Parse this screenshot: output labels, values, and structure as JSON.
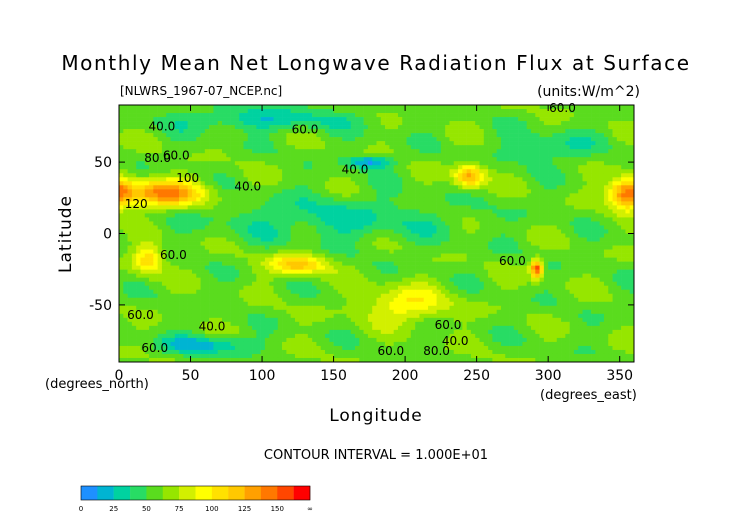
{
  "chart_data": {
    "type": "heatmap",
    "title": "Monthly Mean Net Longwave Radiation Flux at Surface",
    "source_label": "[NLWRS_1967-07_NCEP.nc]",
    "units_label": "(units:W/m^2)",
    "xlabel": "Longitude",
    "ylabel": "Latitude",
    "x_unit_label": "(degrees_east)",
    "y_unit_label": "(degrees_north)",
    "xlim": [
      0,
      360
    ],
    "ylim": [
      -90,
      90
    ],
    "x_ticks": [
      "0",
      "50",
      "100",
      "150",
      "200",
      "250",
      "300",
      "350"
    ],
    "y_ticks": [
      "50",
      "0",
      "-50"
    ],
    "x_tick_values": [
      0,
      50,
      100,
      150,
      200,
      250,
      300,
      350
    ],
    "y_tick_values": [
      50,
      0,
      -50
    ],
    "contour_interval_label": "CONTOUR INTERVAL = 1.000E+01",
    "contour_labels": [
      {
        "text": "40.0",
        "lon": 30,
        "lat": 72
      },
      {
        "text": "60.0",
        "lon": 130,
        "lat": 70
      },
      {
        "text": "80.0",
        "lon": 27,
        "lat": 50
      },
      {
        "text": "60.0",
        "lon": 40,
        "lat": 52
      },
      {
        "text": "100",
        "lon": 48,
        "lat": 36
      },
      {
        "text": "40.0",
        "lon": 90,
        "lat": 30
      },
      {
        "text": "40.0",
        "lon": 165,
        "lat": 42
      },
      {
        "text": "120",
        "lon": 12,
        "lat": 18
      },
      {
        "text": "60.0",
        "lon": 38,
        "lat": -18
      },
      {
        "text": "60.0",
        "lon": 275,
        "lat": -22
      },
      {
        "text": "60.0",
        "lon": 15,
        "lat": -60
      },
      {
        "text": "40.0",
        "lon": 65,
        "lat": -68
      },
      {
        "text": "60.0",
        "lon": 230,
        "lat": -67
      },
      {
        "text": "40.0",
        "lon": 235,
        "lat": -78
      },
      {
        "text": "60.0",
        "lon": 25,
        "lat": -83
      },
      {
        "text": "60.0",
        "lon": 190,
        "lat": -85
      },
      {
        "text": "80.0",
        "lon": 222,
        "lat": -85
      },
      {
        "text": "60.0",
        "lon": 310,
        "lat": 85
      }
    ],
    "colorbar": {
      "tick_labels": [
        "0",
        "25",
        "50",
        "75",
        "100",
        "125",
        "150",
        "∞"
      ],
      "levels": [
        0,
        12.5,
        25,
        37.5,
        50,
        62.5,
        75,
        87.5,
        100,
        112.5,
        125,
        137.5,
        150,
        162.5
      ],
      "colors": [
        "#1e90ff",
        "#00b4d2",
        "#00d2a0",
        "#28dc64",
        "#5adc1e",
        "#96e600",
        "#d2f000",
        "#ffff00",
        "#ffe100",
        "#ffc800",
        "#ffa000",
        "#ff7800",
        "#ff4600",
        "#ff0000"
      ]
    },
    "field_anchors": [
      {
        "lon": 30,
        "lat": 28,
        "value": 140,
        "rlon": 28,
        "rlat": 9
      },
      {
        "lon": 355,
        "lat": 28,
        "value": 140,
        "rlon": 12,
        "rlat": 10
      },
      {
        "lon": 245,
        "lat": 40,
        "value": 130,
        "rlon": 10,
        "rlat": 8
      },
      {
        "lon": 292,
        "lat": -25,
        "value": 160,
        "rlon": 4,
        "rlat": 6
      },
      {
        "lon": 125,
        "lat": -22,
        "value": 120,
        "rlon": 18,
        "rlat": 7
      },
      {
        "lon": 20,
        "lat": -18,
        "value": 110,
        "rlon": 10,
        "rlat": 10
      },
      {
        "lon": 200,
        "lat": -50,
        "value": 100,
        "rlon": 28,
        "rlat": 12
      },
      {
        "lon": 175,
        "lat": 50,
        "value": 10,
        "rlon": 15,
        "rlat": 4
      },
      {
        "lon": 100,
        "lat": 80,
        "value": 30,
        "rlon": 60,
        "rlat": 8
      },
      {
        "lon": 150,
        "lat": 10,
        "value": 35,
        "rlon": 80,
        "rlat": 15
      },
      {
        "lon": 60,
        "lat": -78,
        "value": 20,
        "rlon": 30,
        "rlat": 6
      },
      {
        "lon": 300,
        "lat": 60,
        "value": 35,
        "rlon": 30,
        "rlat": 10
      }
    ]
  }
}
